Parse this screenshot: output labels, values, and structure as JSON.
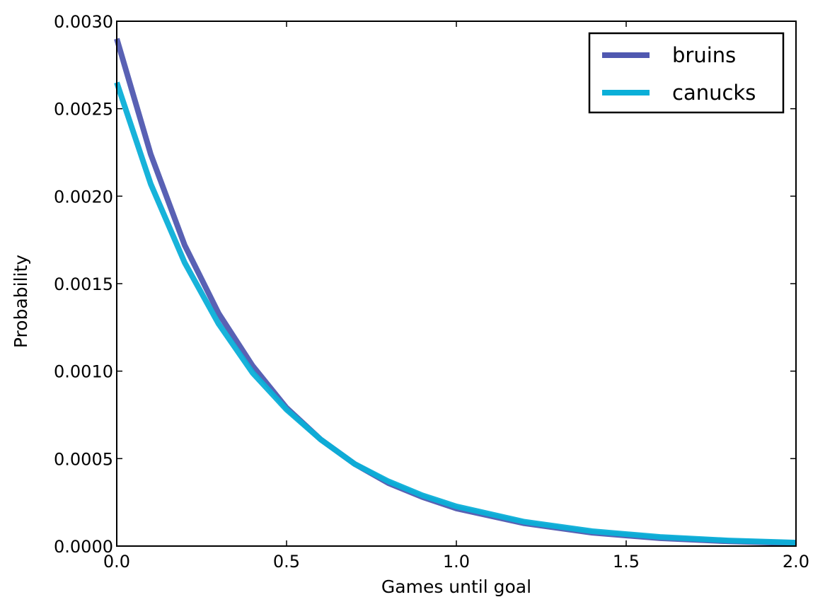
{
  "chart_data": {
    "type": "line",
    "xlabel": "Games until goal",
    "ylabel": "Probability",
    "xlim": [
      0.0,
      2.0
    ],
    "ylim": [
      0.0,
      0.003
    ],
    "x_ticks": [
      "0.0",
      "0.5",
      "1.0",
      "1.5",
      "2.0"
    ],
    "y_ticks": [
      "0.0000",
      "0.0005",
      "0.0010",
      "0.0015",
      "0.0020",
      "0.0025",
      "0.0030"
    ],
    "grid": false,
    "legend_position": "top-right",
    "series": [
      {
        "name": "bruins",
        "color": "#5058b0",
        "x": [
          0.0,
          0.1,
          0.2,
          0.3,
          0.4,
          0.5,
          0.6,
          0.7,
          0.8,
          0.9,
          1.0,
          1.2,
          1.4,
          1.6,
          1.8,
          2.0
        ],
        "y": [
          0.0029,
          0.00224,
          0.00172,
          0.00133,
          0.00103,
          0.00079,
          0.00061,
          0.00047,
          0.00036,
          0.00028,
          0.000215,
          0.00013,
          7.6e-05,
          4.5e-05,
          2.7e-05,
          1.6e-05
        ]
      },
      {
        "name": "canucks",
        "color": "#0bafd8",
        "x": [
          0.0,
          0.1,
          0.2,
          0.3,
          0.4,
          0.5,
          0.6,
          0.7,
          0.8,
          0.9,
          1.0,
          1.2,
          1.4,
          1.6,
          1.8,
          2.0
        ],
        "y": [
          0.00265,
          0.00207,
          0.00162,
          0.00127,
          0.00099,
          0.00078,
          0.00061,
          0.00047,
          0.00037,
          0.00029,
          0.000227,
          0.000139,
          8.5e-05,
          5.2e-05,
          3.2e-05,
          2e-05
        ]
      }
    ]
  }
}
